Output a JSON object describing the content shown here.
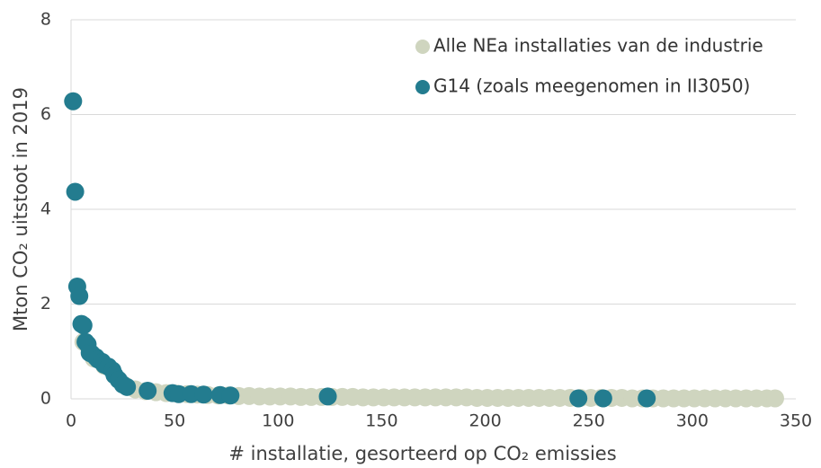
{
  "chart_data": {
    "type": "scatter",
    "xlabel": "# installatie, gesorteerd op CO₂ emissies",
    "ylabel": "Mton CO₂ uitstoot in 2019",
    "xlim": [
      0,
      350
    ],
    "xticks": [
      0,
      50,
      100,
      150,
      200,
      250,
      300,
      350
    ],
    "ylim": [
      0,
      8
    ],
    "yticks": [
      0,
      2,
      4,
      6,
      8
    ],
    "grid": true,
    "legend": "upper right",
    "series": [
      {
        "name": "Alle NEa installaties van de industrie",
        "color": "#cfd5bf",
        "x": [
          1,
          6,
          11,
          16,
          21,
          26,
          31,
          36,
          41,
          46,
          51,
          56,
          61,
          66,
          71,
          76,
          81,
          86,
          91,
          96,
          101,
          106,
          111,
          116,
          121,
          126,
          131,
          136,
          141,
          146,
          151,
          156,
          161,
          166,
          171,
          176,
          181,
          186,
          191,
          196,
          201,
          206,
          211,
          216,
          221,
          226,
          231,
          236,
          241,
          246,
          251,
          256,
          261,
          266,
          271,
          276,
          281,
          286,
          291,
          296,
          301,
          306,
          311,
          316,
          321,
          326,
          331,
          336,
          340
        ],
        "values": [
          6.28,
          1.2,
          0.85,
          0.7,
          0.5,
          0.28,
          0.2,
          0.16,
          0.14,
          0.12,
          0.11,
          0.1,
          0.09,
          0.08,
          0.07,
          0.07,
          0.06,
          0.06,
          0.05,
          0.05,
          0.05,
          0.05,
          0.04,
          0.04,
          0.04,
          0.04,
          0.04,
          0.04,
          0.03,
          0.03,
          0.03,
          0.03,
          0.03,
          0.03,
          0.03,
          0.03,
          0.03,
          0.03,
          0.03,
          0.02,
          0.02,
          0.02,
          0.02,
          0.02,
          0.02,
          0.02,
          0.02,
          0.02,
          0.02,
          0.02,
          0.02,
          0.02,
          0.02,
          0.02,
          0.01,
          0.01,
          0.01,
          0.01,
          0.01,
          0.01,
          0.01,
          0.01,
          0.01,
          0.01,
          0.01,
          0.01,
          0.01,
          0.01,
          0.01
        ]
      },
      {
        "name": "G14 (zoals meegenomen in II3050)",
        "color": "#237c8f",
        "x": [
          1,
          2,
          3,
          4,
          5,
          6,
          7,
          8,
          9,
          10,
          12,
          13,
          15,
          16,
          18,
          20,
          21,
          23,
          25,
          27,
          37,
          49,
          52,
          58,
          64,
          72,
          77,
          124,
          245,
          257,
          278
        ],
        "values": [
          6.28,
          4.37,
          2.37,
          2.17,
          1.58,
          1.55,
          1.2,
          1.15,
          0.97,
          0.95,
          0.88,
          0.83,
          0.78,
          0.72,
          0.68,
          0.6,
          0.5,
          0.4,
          0.3,
          0.25,
          0.17,
          0.12,
          0.1,
          0.1,
          0.09,
          0.08,
          0.07,
          0.05,
          0.01,
          0.01,
          0.01
        ]
      }
    ]
  }
}
